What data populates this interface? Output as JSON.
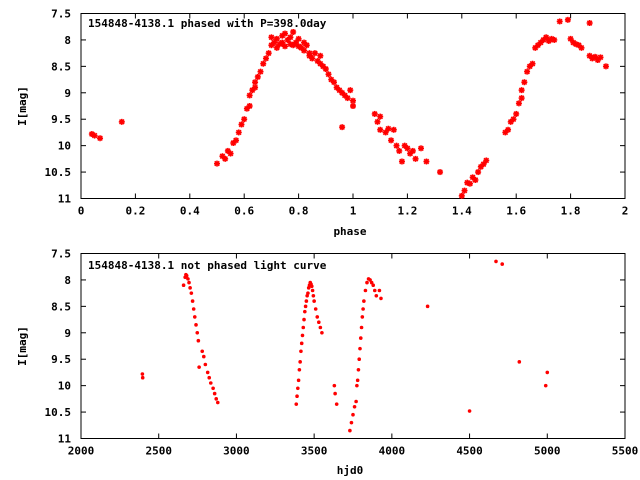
{
  "colors": {
    "points": "#ff0000",
    "axes": "#000000",
    "background": "#ffffff"
  },
  "chart_data": [
    {
      "type": "scatter",
      "title": "154848-4138.1 phased with P=398.0day",
      "xlabel": "phase",
      "ylabel": "I[mag]",
      "xlim": [
        0,
        2
      ],
      "ylim": [
        7.5,
        11
      ],
      "y_inverted": true,
      "grid": false,
      "legend": "none",
      "x_ticks": [
        "0",
        "0.2",
        "0.4",
        "0.6",
        "0.8",
        "1",
        "1.2",
        "1.4",
        "1.6",
        "1.8",
        "2"
      ],
      "y_ticks": [
        "7.5",
        "8",
        "8.5",
        "9",
        "9.5",
        "10",
        "10.5",
        "11"
      ],
      "marker": "star",
      "points": [
        [
          0.04,
          9.78
        ],
        [
          0.05,
          9.81
        ],
        [
          0.07,
          9.86
        ],
        [
          0.15,
          9.55
        ],
        [
          0.5,
          10.34
        ],
        [
          0.52,
          10.2
        ],
        [
          0.53,
          10.25
        ],
        [
          0.54,
          10.1
        ],
        [
          0.55,
          10.15
        ],
        [
          0.56,
          9.95
        ],
        [
          0.57,
          9.9
        ],
        [
          0.58,
          9.75
        ],
        [
          0.59,
          9.6
        ],
        [
          0.6,
          9.5
        ],
        [
          0.61,
          9.3
        ],
        [
          0.62,
          9.25
        ],
        [
          0.62,
          9.05
        ],
        [
          0.63,
          8.95
        ],
        [
          0.64,
          8.8
        ],
        [
          0.64,
          8.9
        ],
        [
          0.65,
          8.7
        ],
        [
          0.66,
          8.6
        ],
        [
          0.67,
          8.45
        ],
        [
          0.68,
          8.35
        ],
        [
          0.69,
          8.25
        ],
        [
          0.7,
          8.1
        ],
        [
          0.7,
          7.95
        ],
        [
          0.71,
          8.05
        ],
        [
          0.72,
          8.15
        ],
        [
          0.72,
          7.98
        ],
        [
          0.73,
          8.08
        ],
        [
          0.74,
          7.92
        ],
        [
          0.74,
          8.05
        ],
        [
          0.75,
          8.12
        ],
        [
          0.75,
          7.88
        ],
        [
          0.76,
          8.0
        ],
        [
          0.77,
          8.08
        ],
        [
          0.77,
          7.95
        ],
        [
          0.78,
          8.1
        ],
        [
          0.78,
          7.85
        ],
        [
          0.79,
          8.05
        ],
        [
          0.8,
          8.12
        ],
        [
          0.8,
          7.98
        ],
        [
          0.81,
          8.15
        ],
        [
          0.82,
          8.05
        ],
        [
          0.82,
          8.2
        ],
        [
          0.83,
          8.1
        ],
        [
          0.84,
          8.25
        ],
        [
          0.84,
          8.3
        ],
        [
          0.85,
          8.35
        ],
        [
          0.86,
          8.25
        ],
        [
          0.87,
          8.4
        ],
        [
          0.88,
          8.45
        ],
        [
          0.88,
          8.3
        ],
        [
          0.89,
          8.5
        ],
        [
          0.9,
          8.55
        ],
        [
          0.91,
          8.65
        ],
        [
          0.92,
          8.75
        ],
        [
          0.93,
          8.8
        ],
        [
          0.94,
          8.9
        ],
        [
          0.95,
          8.95
        ],
        [
          0.96,
          9.0
        ],
        [
          0.97,
          9.05
        ],
        [
          0.98,
          9.1
        ],
        [
          0.99,
          8.95
        ],
        [
          1.0,
          9.15
        ],
        [
          1.0,
          9.25
        ],
        [
          0.96,
          9.65
        ],
        [
          1.08,
          9.4
        ],
        [
          1.09,
          9.55
        ],
        [
          1.1,
          9.45
        ],
        [
          1.1,
          9.7
        ],
        [
          1.12,
          9.75
        ],
        [
          1.13,
          9.68
        ],
        [
          1.14,
          9.9
        ],
        [
          1.15,
          9.7
        ],
        [
          1.16,
          10.0
        ],
        [
          1.17,
          10.1
        ],
        [
          1.18,
          10.3
        ],
        [
          1.19,
          10.0
        ],
        [
          1.2,
          10.05
        ],
        [
          1.21,
          10.15
        ],
        [
          1.22,
          10.1
        ],
        [
          1.23,
          10.25
        ],
        [
          1.25,
          10.05
        ],
        [
          1.27,
          10.3
        ],
        [
          1.32,
          10.5
        ],
        [
          1.4,
          10.95
        ],
        [
          1.41,
          10.85
        ],
        [
          1.42,
          10.7
        ],
        [
          1.43,
          10.72
        ],
        [
          1.44,
          10.6
        ],
        [
          1.45,
          10.65
        ],
        [
          1.46,
          10.5
        ],
        [
          1.47,
          10.4
        ],
        [
          1.48,
          10.35
        ],
        [
          1.49,
          10.28
        ],
        [
          1.56,
          9.75
        ],
        [
          1.57,
          9.7
        ],
        [
          1.58,
          9.55
        ],
        [
          1.59,
          9.5
        ],
        [
          1.6,
          9.4
        ],
        [
          1.61,
          9.2
        ],
        [
          1.62,
          9.1
        ],
        [
          1.62,
          8.95
        ],
        [
          1.63,
          8.8
        ],
        [
          1.64,
          8.6
        ],
        [
          1.65,
          8.5
        ],
        [
          1.66,
          8.45
        ],
        [
          1.67,
          8.15
        ],
        [
          1.68,
          8.1
        ],
        [
          1.69,
          8.05
        ],
        [
          1.7,
          8.0
        ],
        [
          1.71,
          7.95
        ],
        [
          1.72,
          8.02
        ],
        [
          1.73,
          7.98
        ],
        [
          1.74,
          8.0
        ],
        [
          1.76,
          7.65
        ],
        [
          1.79,
          7.62
        ],
        [
          1.8,
          7.98
        ],
        [
          1.81,
          8.05
        ],
        [
          1.82,
          8.08
        ],
        [
          1.83,
          8.1
        ],
        [
          1.84,
          8.15
        ],
        [
          1.87,
          7.68
        ],
        [
          1.87,
          8.3
        ],
        [
          1.88,
          8.35
        ],
        [
          1.89,
          8.32
        ],
        [
          1.9,
          8.38
        ],
        [
          1.91,
          8.33
        ],
        [
          1.93,
          8.5
        ]
      ]
    },
    {
      "type": "scatter",
      "title": "154848-4138.1 not phased light curve",
      "xlabel": "hjd0",
      "ylabel": "I[mag]",
      "xlim": [
        2000,
        5500
      ],
      "ylim": [
        7.5,
        11
      ],
      "y_inverted": true,
      "grid": false,
      "legend": "none",
      "x_ticks": [
        "2000",
        "2500",
        "3000",
        "3500",
        "4000",
        "4500",
        "5000",
        "5500"
      ],
      "y_ticks": [
        "7.5",
        "8",
        "8.5",
        "9",
        "9.5",
        "10",
        "10.5",
        "11"
      ],
      "marker": "dot",
      "points": [
        [
          2395,
          9.78
        ],
        [
          2397,
          9.85
        ],
        [
          2660,
          8.1
        ],
        [
          2670,
          7.95
        ],
        [
          2675,
          7.9
        ],
        [
          2680,
          7.92
        ],
        [
          2688,
          7.98
        ],
        [
          2695,
          8.05
        ],
        [
          2702,
          8.15
        ],
        [
          2710,
          8.25
        ],
        [
          2718,
          8.4
        ],
        [
          2725,
          8.55
        ],
        [
          2732,
          8.7
        ],
        [
          2740,
          8.85
        ],
        [
          2748,
          9.0
        ],
        [
          2755,
          9.15
        ],
        [
          2760,
          9.65
        ],
        [
          2780,
          9.35
        ],
        [
          2790,
          9.45
        ],
        [
          2800,
          9.6
        ],
        [
          2815,
          9.75
        ],
        [
          2825,
          9.85
        ],
        [
          2835,
          9.95
        ],
        [
          2850,
          10.05
        ],
        [
          2860,
          10.15
        ],
        [
          2870,
          10.25
        ],
        [
          2880,
          10.32
        ],
        [
          3385,
          10.35
        ],
        [
          3390,
          10.2
        ],
        [
          3395,
          10.05
        ],
        [
          3400,
          9.9
        ],
        [
          3405,
          9.7
        ],
        [
          3410,
          9.55
        ],
        [
          3415,
          9.35
        ],
        [
          3420,
          9.2
        ],
        [
          3425,
          9.05
        ],
        [
          3430,
          8.9
        ],
        [
          3435,
          8.75
        ],
        [
          3440,
          8.6
        ],
        [
          3445,
          8.5
        ],
        [
          3450,
          8.4
        ],
        [
          3455,
          8.3
        ],
        [
          3460,
          8.25
        ],
        [
          3465,
          8.15
        ],
        [
          3470,
          8.1
        ],
        [
          3475,
          8.05
        ],
        [
          3480,
          8.08
        ],
        [
          3485,
          8.12
        ],
        [
          3490,
          8.2
        ],
        [
          3495,
          8.3
        ],
        [
          3500,
          8.4
        ],
        [
          3510,
          8.55
        ],
        [
          3520,
          8.7
        ],
        [
          3530,
          8.8
        ],
        [
          3540,
          8.9
        ],
        [
          3550,
          9.0
        ],
        [
          3630,
          10.0
        ],
        [
          3635,
          10.15
        ],
        [
          3645,
          10.35
        ],
        [
          3730,
          10.85
        ],
        [
          3740,
          10.7
        ],
        [
          3750,
          10.55
        ],
        [
          3760,
          10.4
        ],
        [
          3770,
          10.3
        ],
        [
          3775,
          10.0
        ],
        [
          3780,
          9.9
        ],
        [
          3785,
          9.7
        ],
        [
          3790,
          9.5
        ],
        [
          3795,
          9.3
        ],
        [
          3800,
          9.1
        ],
        [
          3805,
          8.9
        ],
        [
          3810,
          8.7
        ],
        [
          3815,
          8.55
        ],
        [
          3820,
          8.4
        ],
        [
          3830,
          8.2
        ],
        [
          3840,
          8.05
        ],
        [
          3850,
          7.98
        ],
        [
          3860,
          8.0
        ],
        [
          3870,
          8.05
        ],
        [
          3880,
          8.1
        ],
        [
          3890,
          8.2
        ],
        [
          3900,
          8.3
        ],
        [
          3920,
          8.2
        ],
        [
          3930,
          8.35
        ],
        [
          4230,
          8.5
        ],
        [
          4500,
          10.48
        ],
        [
          4670,
          7.65
        ],
        [
          4710,
          7.7
        ],
        [
          4820,
          9.55
        ],
        [
          4990,
          10.0
        ],
        [
          5000,
          9.75
        ]
      ]
    }
  ]
}
